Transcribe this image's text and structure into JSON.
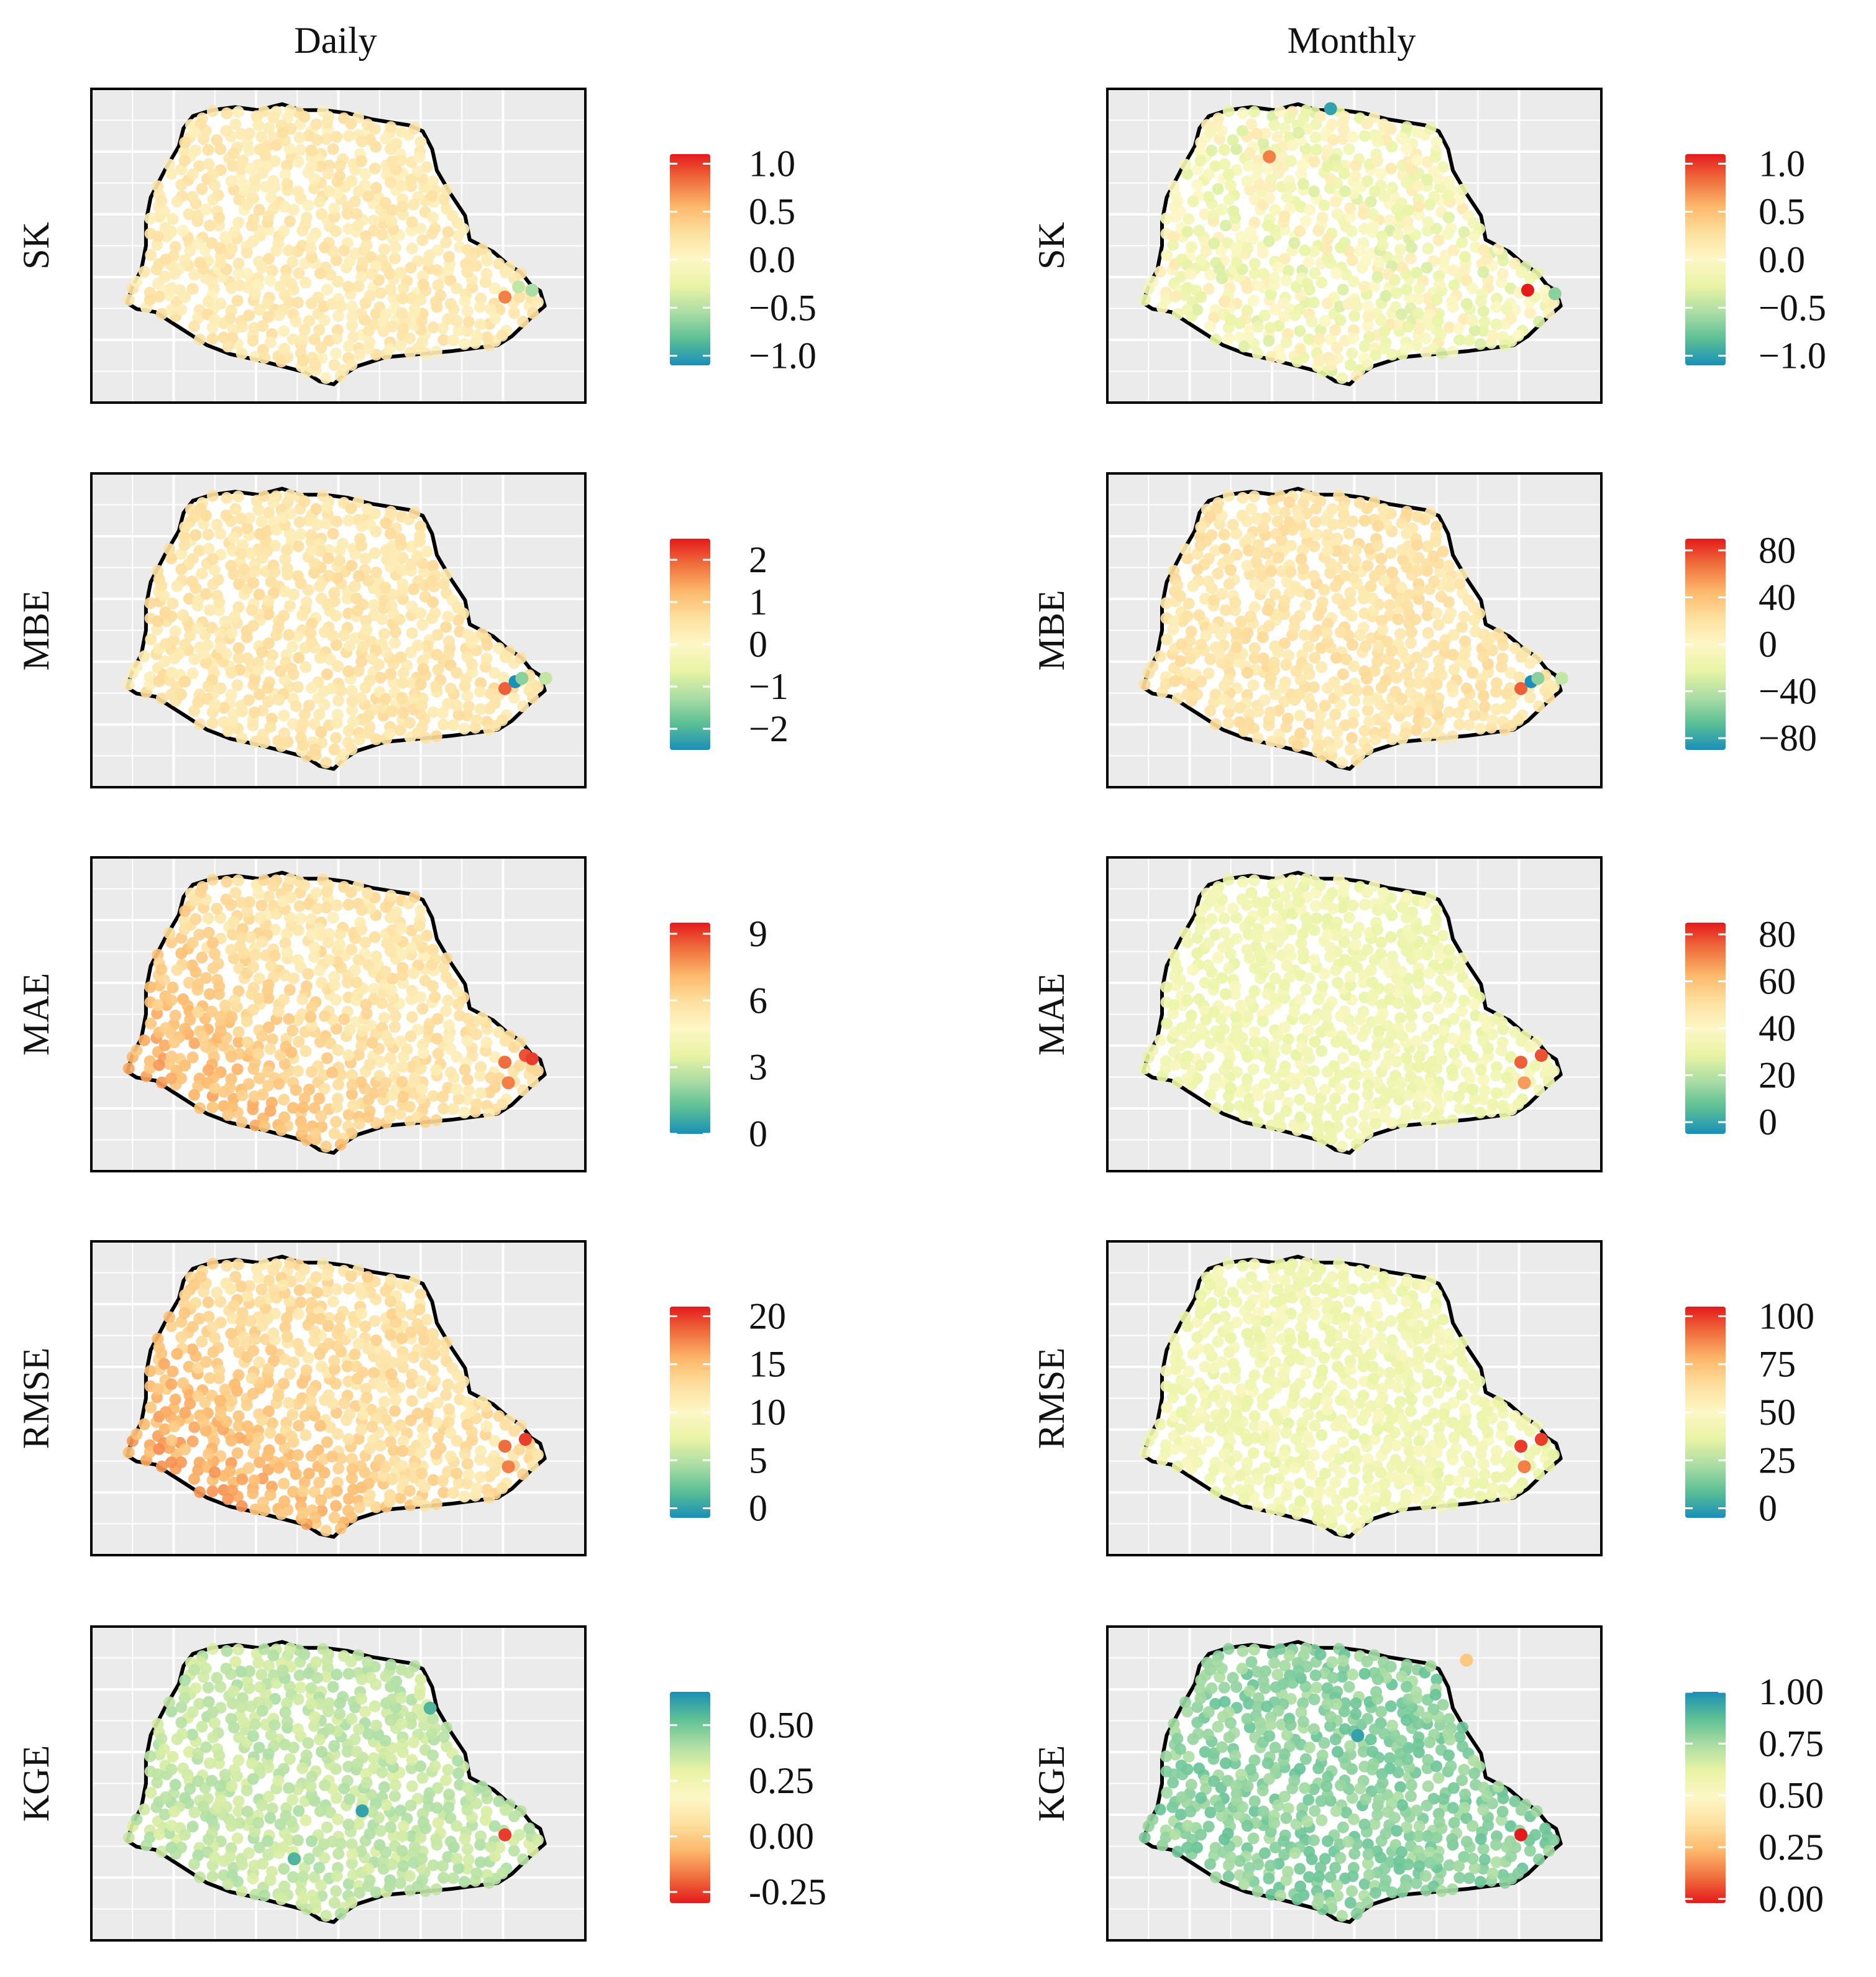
{
  "chart_data": {
    "type": "scatter",
    "description_columns": [
      "Daily",
      "Monthly"
    ],
    "row_labels": [
      "SK",
      "MBE",
      "MAE",
      "RMSE",
      "KGE"
    ],
    "palette_rdylbu": [
      "#2b83ba",
      "#abdda4",
      "#ffffbf",
      "#fdae61",
      "#d7191c"
    ],
    "palette_points": [
      "#1a8fb8",
      "#5cbf95",
      "#abdda4",
      "#e9f4a4",
      "#fdf7c6",
      "#fde0a0",
      "#fdb96b",
      "#f0703e",
      "#e41a1c"
    ],
    "panels": [
      {
        "column": "Daily",
        "row": "SK",
        "legend": {
          "ticks": [
            "1.0",
            "0.5",
            "0.0",
            "−0.5",
            "−1.0"
          ],
          "values": [
            1.0,
            0.5,
            0.0,
            -0.5,
            -1.0
          ],
          "range": [
            -1.1,
            1.1
          ],
          "reversed": false
        },
        "points": {
          "general_level": 0.58,
          "spread": 0.05,
          "highlight": [
            {
              "lon": -48.9,
              "lat": -25.35,
              "level": 0.85
            },
            {
              "lon": -48.7,
              "lat": -25.2,
              "level": 0.3
            },
            {
              "lon": -48.5,
              "lat": -25.25,
              "level": 0.25
            }
          ]
        }
      },
      {
        "column": "Monthly",
        "row": "SK",
        "legend": {
          "ticks": [
            "1.0",
            "0.5",
            "0.0",
            "−0.5",
            "−1.0"
          ],
          "values": [
            1.0,
            0.5,
            0.0,
            -0.5,
            -1.0
          ],
          "range": [
            -1.1,
            1.1
          ],
          "reversed": false
        },
        "points": {
          "general_level": 0.46,
          "spread": 0.12,
          "highlight": [
            {
              "lon": -48.8,
              "lat": -25.25,
              "level": 1.0
            },
            {
              "lon": -51.7,
              "lat": -22.6,
              "level": 0.05
            },
            {
              "lon": -52.6,
              "lat": -23.3,
              "level": 0.85
            },
            {
              "lon": -48.4,
              "lat": -25.3,
              "level": 0.2
            }
          ]
        }
      },
      {
        "column": "Daily",
        "row": "MBE",
        "legend": {
          "ticks": [
            "2",
            "1",
            "0",
            "−1",
            "−2"
          ],
          "values": [
            2,
            1,
            0,
            -1,
            -2
          ],
          "range": [
            -2.5,
            2.5
          ],
          "reversed": false
        },
        "points": {
          "general_level": 0.6,
          "spread": 0.05,
          "highlight": [
            {
              "lon": -48.9,
              "lat": -25.45,
              "level": 0.9
            },
            {
              "lon": -48.75,
              "lat": -25.35,
              "level": 0.0
            },
            {
              "lon": -48.65,
              "lat": -25.3,
              "level": 0.2
            },
            {
              "lon": -48.3,
              "lat": -25.3,
              "level": 0.3
            }
          ]
        }
      },
      {
        "column": "Monthly",
        "row": "MBE",
        "legend": {
          "ticks": [
            "80",
            "40",
            "0",
            "−40",
            "−80"
          ],
          "values": [
            80,
            40,
            0,
            -40,
            -80
          ],
          "range": [
            -90,
            90
          ],
          "reversed": false
        },
        "points": {
          "general_level": 0.6,
          "spread": 0.05,
          "highlight": [
            {
              "lon": -48.9,
              "lat": -25.45,
              "level": 0.9
            },
            {
              "lon": -48.75,
              "lat": -25.35,
              "level": 0.0
            },
            {
              "lon": -48.65,
              "lat": -25.3,
              "level": 0.2
            },
            {
              "lon": -48.3,
              "lat": -25.3,
              "level": 0.3
            }
          ]
        }
      },
      {
        "column": "Daily",
        "row": "MAE",
        "legend": {
          "ticks": [
            "9",
            "6",
            "3",
            "0"
          ],
          "values": [
            9,
            6,
            3,
            0
          ],
          "range": [
            0,
            9.5
          ],
          "reversed": false
        },
        "points": {
          "general_level": 0.6,
          "spread": 0.06,
          "southwest_gradient": 0.14,
          "highlight": [
            {
              "lon": -48.9,
              "lat": -25.3,
              "level": 0.88
            },
            {
              "lon": -48.6,
              "lat": -25.2,
              "level": 0.92
            },
            {
              "lon": -48.5,
              "lat": -25.25,
              "level": 0.95
            },
            {
              "lon": -48.85,
              "lat": -25.6,
              "level": 0.85
            }
          ]
        }
      },
      {
        "column": "Monthly",
        "row": "MAE",
        "legend": {
          "ticks": [
            "80",
            "60",
            "40",
            "20",
            "0"
          ],
          "values": [
            80,
            60,
            40,
            20,
            0
          ],
          "range": [
            -5,
            85
          ],
          "reversed": false
        },
        "points": {
          "general_level": 0.42,
          "spread": 0.05,
          "highlight": [
            {
              "lon": -48.9,
              "lat": -25.3,
              "level": 0.9
            },
            {
              "lon": -48.6,
              "lat": -25.2,
              "level": 0.92
            },
            {
              "lon": -48.85,
              "lat": -25.6,
              "level": 0.8
            }
          ]
        }
      },
      {
        "column": "Daily",
        "row": "RMSE",
        "legend": {
          "ticks": [
            "20",
            "15",
            "10",
            "5",
            "0"
          ],
          "values": [
            20,
            15,
            10,
            5,
            0
          ],
          "range": [
            -1,
            21
          ],
          "reversed": false
        },
        "points": {
          "general_level": 0.62,
          "spread": 0.06,
          "southwest_gradient": 0.14,
          "highlight": [
            {
              "lon": -48.9,
              "lat": -25.3,
              "level": 0.88
            },
            {
              "lon": -48.6,
              "lat": -25.2,
              "level": 0.95
            },
            {
              "lon": -48.85,
              "lat": -25.6,
              "level": 0.85
            }
          ]
        }
      },
      {
        "column": "Monthly",
        "row": "RMSE",
        "legend": {
          "ticks": [
            "100",
            "75",
            "50",
            "25",
            "0"
          ],
          "values": [
            100,
            75,
            50,
            25,
            0
          ],
          "range": [
            -5,
            105
          ],
          "reversed": false
        },
        "points": {
          "general_level": 0.42,
          "spread": 0.05,
          "highlight": [
            {
              "lon": -48.9,
              "lat": -25.3,
              "level": 0.95
            },
            {
              "lon": -48.6,
              "lat": -25.2,
              "level": 0.95
            },
            {
              "lon": -48.85,
              "lat": -25.6,
              "level": 0.85
            }
          ]
        }
      },
      {
        "column": "Daily",
        "row": "KGE",
        "legend": {
          "ticks": [
            "0.50",
            "0.25",
            "0.00",
            "-0.25"
          ],
          "values": [
            0.5,
            0.25,
            0.0,
            -0.25
          ],
          "range": [
            -0.3,
            0.65
          ],
          "reversed": true
        },
        "points": {
          "general_level": 0.3,
          "spread": 0.05,
          "highlight": [
            {
              "lon": -48.9,
              "lat": -25.35,
              "level": 0.95
            },
            {
              "lon": -51.0,
              "lat": -25.0,
              "level": 0.05
            },
            {
              "lon": -52.0,
              "lat": -25.7,
              "level": 0.1
            },
            {
              "lon": -50.0,
              "lat": -23.5,
              "level": 0.1
            }
          ]
        }
      },
      {
        "column": "Monthly",
        "row": "KGE",
        "legend": {
          "ticks": [
            "1.00",
            "0.75",
            "0.50",
            "0.25",
            "0.00"
          ],
          "values": [
            1.0,
            0.75,
            0.5,
            0.25,
            0.0
          ],
          "range": [
            -0.02,
            1.0
          ],
          "reversed": true
        },
        "points": {
          "general_level": 0.2,
          "spread": 0.06,
          "highlight": [
            {
              "lon": -48.9,
              "lat": -25.35,
              "level": 1.0
            },
            {
              "lon": -49.7,
              "lat": -22.8,
              "level": 0.7
            },
            {
              "lon": -51.3,
              "lat": -23.9,
              "level": 0.05
            }
          ]
        }
      }
    ],
    "region": {
      "name": "Paraná state outline",
      "lon_range": [
        -54.8,
        -47.9
      ],
      "lat_range": [
        -26.8,
        -22.4
      ],
      "station_count_per_panel": 640
    }
  }
}
